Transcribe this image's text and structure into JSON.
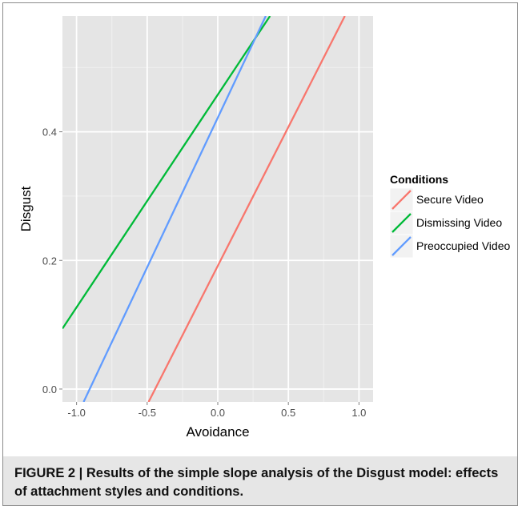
{
  "figure": {
    "caption": "FIGURE 2 | Results of the simple slope analysis of the Disgust model: effects of attachment styles and conditions."
  },
  "chart_data": {
    "type": "line",
    "xlabel": "Avoidance",
    "ylabel": "Disgust",
    "xlim": [
      -1.1,
      1.1
    ],
    "ylim": [
      -0.02,
      0.58
    ],
    "x_ticks": [
      -1.0,
      -0.5,
      0.0,
      0.5,
      1.0
    ],
    "x_tick_labels": [
      "-1.0",
      "-0.5",
      "0.0",
      "0.5",
      "1.0"
    ],
    "y_ticks": [
      0.0,
      0.2,
      0.4
    ],
    "y_tick_labels": [
      "0.0",
      "0.2",
      "0.4"
    ],
    "grid": true,
    "background": "#e5e5e5",
    "legend": {
      "title": "Conditions",
      "position": "right"
    },
    "series": [
      {
        "name": "Secure Video",
        "color": "#f8766d",
        "x": [
          -0.49,
          0.9
        ],
        "y": [
          -0.02,
          0.58
        ]
      },
      {
        "name": "Dismissing Video",
        "color": "#00ba38",
        "x": [
          -1.1,
          0.37
        ],
        "y": [
          0.094,
          0.58
        ]
      },
      {
        "name": "Preoccupied Video",
        "color": "#619cff",
        "x": [
          -0.95,
          0.34
        ],
        "y": [
          -0.02,
          0.58
        ]
      }
    ]
  }
}
